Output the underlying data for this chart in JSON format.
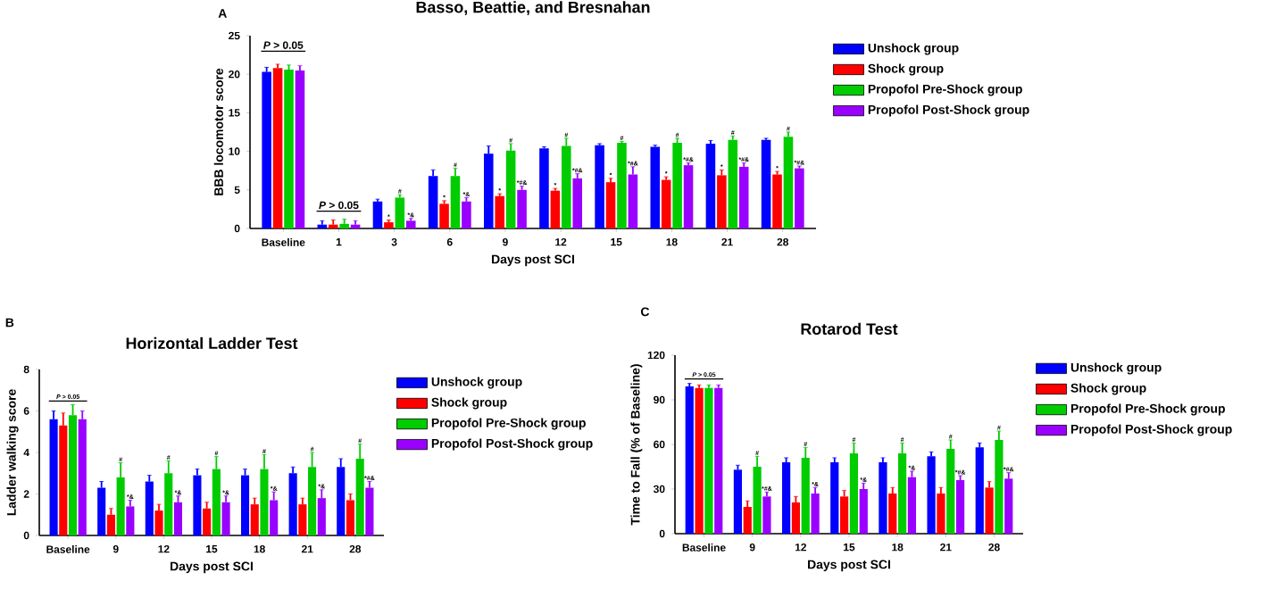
{
  "chart_data": [
    {
      "type": "bar",
      "title": "Basso, Beattie, and Bresnahan",
      "xlabel": "Days post SCI",
      "ylabel": "BBB locomotor score",
      "categories": [
        "Baseline",
        "1",
        "3",
        "6",
        "9",
        "12",
        "15",
        "18",
        "21",
        "28"
      ],
      "ylim": [
        0,
        25
      ],
      "yticks": [
        0,
        5,
        10,
        15,
        20,
        25
      ],
      "legend": "right",
      "annotations": [
        "A",
        "*P* > 0.05",
        "*P* > 0.05"
      ],
      "series": [
        {
          "name": "Unshock group",
          "color": "#0000ff",
          "values": [
            20.3,
            0.5,
            3.5,
            6.8,
            9.7,
            10.4,
            10.8,
            10.6,
            11.0,
            11.5
          ],
          "errors": [
            0.6,
            0.5,
            0.3,
            0.8,
            1.0,
            0.2,
            0.2,
            0.2,
            0.4,
            0.2
          ]
        },
        {
          "name": "Shock group",
          "color": "#ff0000",
          "values": [
            20.8,
            0.5,
            0.8,
            3.2,
            4.2,
            4.9,
            6.0,
            6.3,
            6.9,
            7.0
          ],
          "errors": [
            0.5,
            0.6,
            0.3,
            0.4,
            0.3,
            0.3,
            0.5,
            0.4,
            0.7,
            0.4
          ],
          "value_labels": [
            null,
            null,
            "*",
            "*",
            "*",
            "*",
            "*",
            "*",
            "*",
            "*"
          ]
        },
        {
          "name": "Propofol Pre-Shock group",
          "color": "#00cc00",
          "values": [
            20.6,
            0.6,
            4.0,
            6.8,
            10.1,
            10.7,
            11.1,
            11.1,
            11.5,
            11.9
          ],
          "errors": [
            0.6,
            0.6,
            0.4,
            1.0,
            0.9,
            1.0,
            0.2,
            0.6,
            0.5,
            0.6
          ],
          "value_labels": [
            null,
            null,
            "#",
            "#",
            "#",
            "#",
            "#",
            "#",
            "#",
            "#"
          ]
        },
        {
          "name": "Propofol Post-Shock group",
          "color": "#9900ff",
          "values": [
            20.5,
            0.5,
            1.0,
            3.5,
            5.0,
            6.5,
            7.0,
            8.2,
            8.0,
            7.8
          ],
          "errors": [
            0.6,
            0.5,
            0.3,
            0.5,
            0.5,
            0.6,
            1.0,
            0.3,
            0.5,
            0.3
          ],
          "value_labels": [
            null,
            null,
            "*&",
            "*&",
            "*#&",
            "*#&",
            "*#&",
            "*#&",
            "*#&",
            "*#&"
          ]
        }
      ]
    },
    {
      "type": "bar",
      "title": "Horizontal Ladder Test",
      "xlabel": "Days post SCI",
      "ylabel": "Ladder walking score",
      "categories": [
        "Baseline",
        "9",
        "12",
        "15",
        "18",
        "21",
        "28"
      ],
      "ylim": [
        0,
        8
      ],
      "yticks": [
        0,
        2,
        4,
        6,
        8
      ],
      "legend": "right",
      "annotations": [
        "B",
        "*P* > 0.05"
      ],
      "series": [
        {
          "name": "Unshock group",
          "color": "#0000ff",
          "values": [
            5.6,
            2.3,
            2.6,
            2.9,
            2.9,
            3.0,
            3.3
          ],
          "errors": [
            0.4,
            0.3,
            0.3,
            0.3,
            0.3,
            0.3,
            0.4
          ]
        },
        {
          "name": "Shock group",
          "color": "#ff0000",
          "values": [
            5.3,
            1.0,
            1.2,
            1.3,
            1.5,
            1.5,
            1.7
          ],
          "errors": [
            0.6,
            0.3,
            0.3,
            0.3,
            0.3,
            0.3,
            0.3
          ]
        },
        {
          "name": "Propofol Pre-Shock group",
          "color": "#00cc00",
          "values": [
            5.8,
            2.8,
            3.0,
            3.2,
            3.2,
            3.3,
            3.7
          ],
          "errors": [
            0.5,
            0.7,
            0.6,
            0.6,
            0.7,
            0.7,
            0.7
          ],
          "value_labels": [
            null,
            "#",
            "#",
            "#",
            "#",
            "#",
            "#"
          ]
        },
        {
          "name": "Propofol Post-Shock group",
          "color": "#9900ff",
          "values": [
            5.6,
            1.4,
            1.6,
            1.6,
            1.7,
            1.8,
            2.3
          ],
          "errors": [
            0.4,
            0.3,
            0.3,
            0.3,
            0.4,
            0.4,
            0.3
          ],
          "value_labels": [
            null,
            "*&",
            "*&",
            "*&",
            "*&",
            "*&",
            "*#&"
          ]
        }
      ]
    },
    {
      "type": "bar",
      "title": "Rotarod Test",
      "xlabel": "Days post SCI",
      "ylabel": "Time to Fall (% of Baseline)",
      "categories": [
        "Baseline",
        "9",
        "12",
        "15",
        "18",
        "21",
        "28"
      ],
      "ylim": [
        0,
        120
      ],
      "yticks": [
        0,
        30,
        60,
        90,
        120
      ],
      "legend": "right",
      "annotations": [
        "C",
        {
          "text": "*P* > 0.05",
          "x": "Baseline",
          "y": 104
        }
      ],
      "series": [
        {
          "name": "Unshock group",
          "color": "#0000ff",
          "values": [
            99,
            43,
            48,
            48,
            48,
            52,
            58
          ],
          "errors": [
            2,
            3,
            3,
            3,
            3,
            3,
            3
          ]
        },
        {
          "name": "Shock group",
          "color": "#ff0000",
          "values": [
            98,
            18,
            21,
            25,
            27,
            27,
            31
          ],
          "errors": [
            2,
            4,
            4,
            4,
            4,
            4,
            4
          ]
        },
        {
          "name": "Propofol Pre-Shock group",
          "color": "#00cc00",
          "values": [
            98,
            45,
            51,
            54,
            54,
            57,
            63
          ],
          "errors": [
            2,
            7,
            7,
            7,
            7,
            6,
            6
          ],
          "value_labels": [
            null,
            "#",
            "#",
            "#",
            "#",
            "#",
            "#"
          ]
        },
        {
          "name": "Propofol Post-Shock group",
          "color": "#9900ff",
          "values": [
            98,
            25,
            27,
            30,
            38,
            36,
            37
          ],
          "errors": [
            2,
            3,
            4,
            4,
            4,
            3,
            4
          ],
          "value_labels": [
            null,
            "*#&",
            "*&",
            "*&",
            "*&",
            "*#&",
            "*#&"
          ]
        }
      ]
    }
  ]
}
